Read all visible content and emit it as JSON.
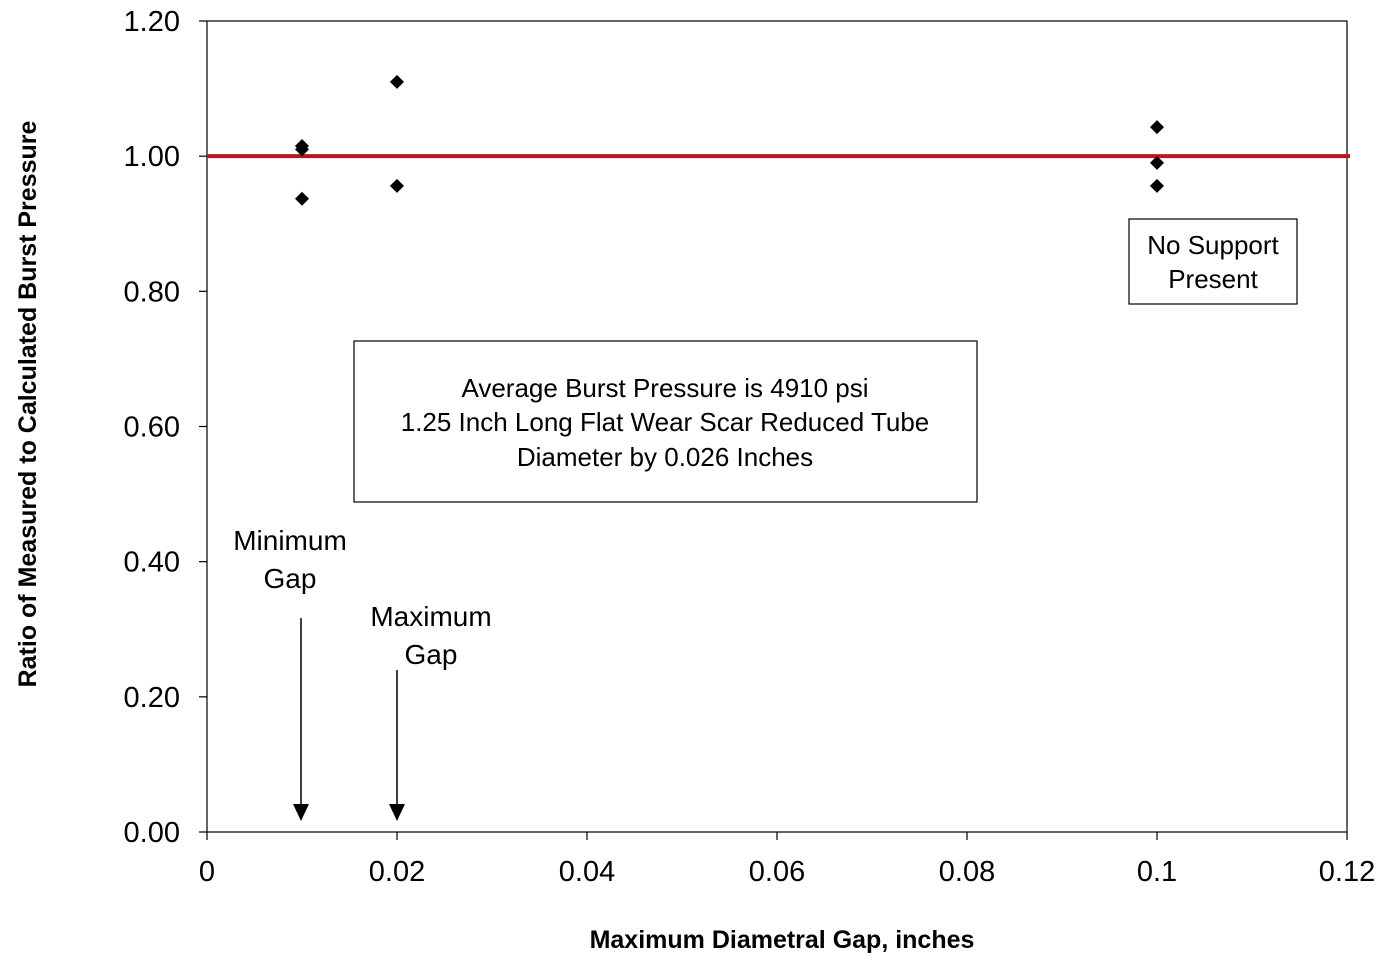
{
  "chart_data": {
    "type": "scatter",
    "title": "",
    "xlabel": "Maximum  Diametral  Gap, inches",
    "ylabel": "Ratio of Measured to Calculated Burst Pressure",
    "xlim": [
      0,
      0.12
    ],
    "ylim": [
      0,
      1.2
    ],
    "x_ticks": [
      "0",
      "0.02",
      "0.04",
      "0.06",
      "0.08",
      "0.1",
      "0.12"
    ],
    "x_tick_values": [
      0,
      0.02,
      0.04,
      0.06,
      0.08,
      0.1,
      0.12
    ],
    "y_ticks": [
      "0.00",
      "0.20",
      "0.40",
      "0.60",
      "0.80",
      "1.00",
      "1.20"
    ],
    "y_tick_values": [
      0,
      0.2,
      0.4,
      0.6,
      0.8,
      1.0,
      1.2
    ],
    "grid": false,
    "points": [
      {
        "x": 0.01,
        "y": 1.015
      },
      {
        "x": 0.01,
        "y": 1.01
      },
      {
        "x": 0.01,
        "y": 0.937
      },
      {
        "x": 0.02,
        "y": 1.11
      },
      {
        "x": 0.02,
        "y": 0.956
      },
      {
        "x": 0.1,
        "y": 1.043
      },
      {
        "x": 0.1,
        "y": 0.99
      },
      {
        "x": 0.1,
        "y": 0.956
      }
    ],
    "reference_line": {
      "y": 1.0,
      "color": "#c0141c"
    },
    "marker_color": "#000000",
    "annotations": {
      "box_main": [
        "Average  Burst  Pressure  is 4910 psi",
        "1.25 Inch  Long Flat  Wear Scar Reduced Tube",
        "Diameter by  0.026 Inches"
      ],
      "box_support": [
        "No Support",
        "Present"
      ],
      "min_gap": [
        "Minimum",
        "Gap"
      ],
      "max_gap": [
        "Maximum",
        "Gap"
      ]
    }
  }
}
